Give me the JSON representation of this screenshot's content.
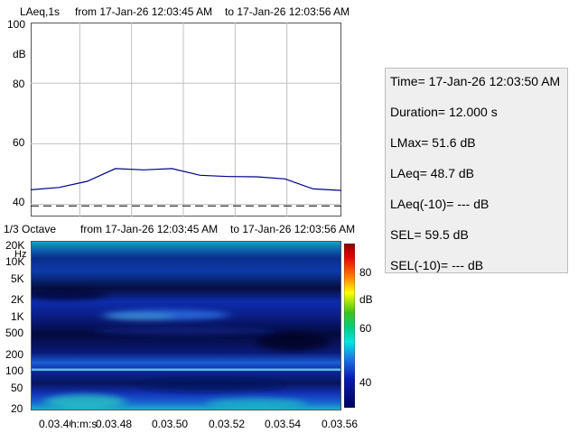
{
  "level_chart": {
    "header": {
      "metric": "LAeq,1s",
      "from": "from 17-Jan-26 12:03:45 AM",
      "to": "to 17-Jan-26 12:03:56 AM"
    },
    "y_unit": "dB",
    "y_ticks": [
      "100",
      "80",
      "60",
      "40"
    ]
  },
  "spectrum_chart": {
    "header": {
      "band": "1/3 Octave",
      "from": "from 17-Jan-26 12:03:45 AM",
      "to": "to 17-Jan-26 12:03:56 AM"
    },
    "y_unit": "Hz",
    "freq_ticks": [
      "20K",
      "10K",
      "5K",
      "2K",
      "1K",
      "500",
      "200",
      "100",
      "50",
      "20"
    ],
    "x_unit": "h:m:s",
    "x_ticks": [
      "0.03.46",
      "0.03.48",
      "0.03.50",
      "0.03.52",
      "0.03.54",
      "0.03.56"
    ],
    "colorbar": {
      "unit": "dB",
      "ticks": [
        "80",
        "60",
        "40"
      ]
    }
  },
  "stats": {
    "time": "Time= 17-Jan-26 12:03:50 AM",
    "duration": "Duration= 12.000 s",
    "lmax": "LMax= 51.6 dB",
    "laeq": "LAeq= 48.7 dB",
    "laeq_10": "LAeq(-10)= --- dB",
    "sel": "SEL= 59.5 dB",
    "sel_10": "SEL(-10)= --- dB"
  },
  "colors": {
    "level_line": "#00008b",
    "grid": "#c0c0c0",
    "threshold_line": "#000000",
    "stats_bg": "#efefef"
  },
  "chart_data": [
    {
      "type": "line",
      "title": "LAeq,1s",
      "xlabel": "",
      "ylabel": "dB",
      "ylim": [
        36,
        100
      ],
      "grid": true,
      "x": [
        0,
        1,
        2,
        3,
        4,
        5,
        6,
        7,
        8,
        9,
        10,
        11
      ],
      "series": [
        {
          "values": [
            44.8,
            45.6,
            47.6,
            51.8,
            51.4,
            51.8,
            49.6,
            49.2,
            49.1,
            48.4,
            45.1,
            44.6
          ]
        }
      ],
      "reference_lines": [
        {
          "y": 39.5,
          "style": "dashed"
        }
      ]
    },
    {
      "type": "heatmap",
      "title": "1/3 Octave",
      "xlabel": "h:m:s",
      "ylabel": "Hz",
      "x_ticks": [
        "0.03.46",
        "0.03.48",
        "0.03.50",
        "0.03.52",
        "0.03.54",
        "0.03.56"
      ],
      "y_ticks": [
        "20K",
        "10K",
        "5K",
        "2K",
        "1K",
        "500",
        "200",
        "100",
        "50",
        "20"
      ],
      "color_range_db": [
        36,
        92
      ],
      "colorbar_ticks": [
        80,
        60,
        40
      ]
    }
  ]
}
